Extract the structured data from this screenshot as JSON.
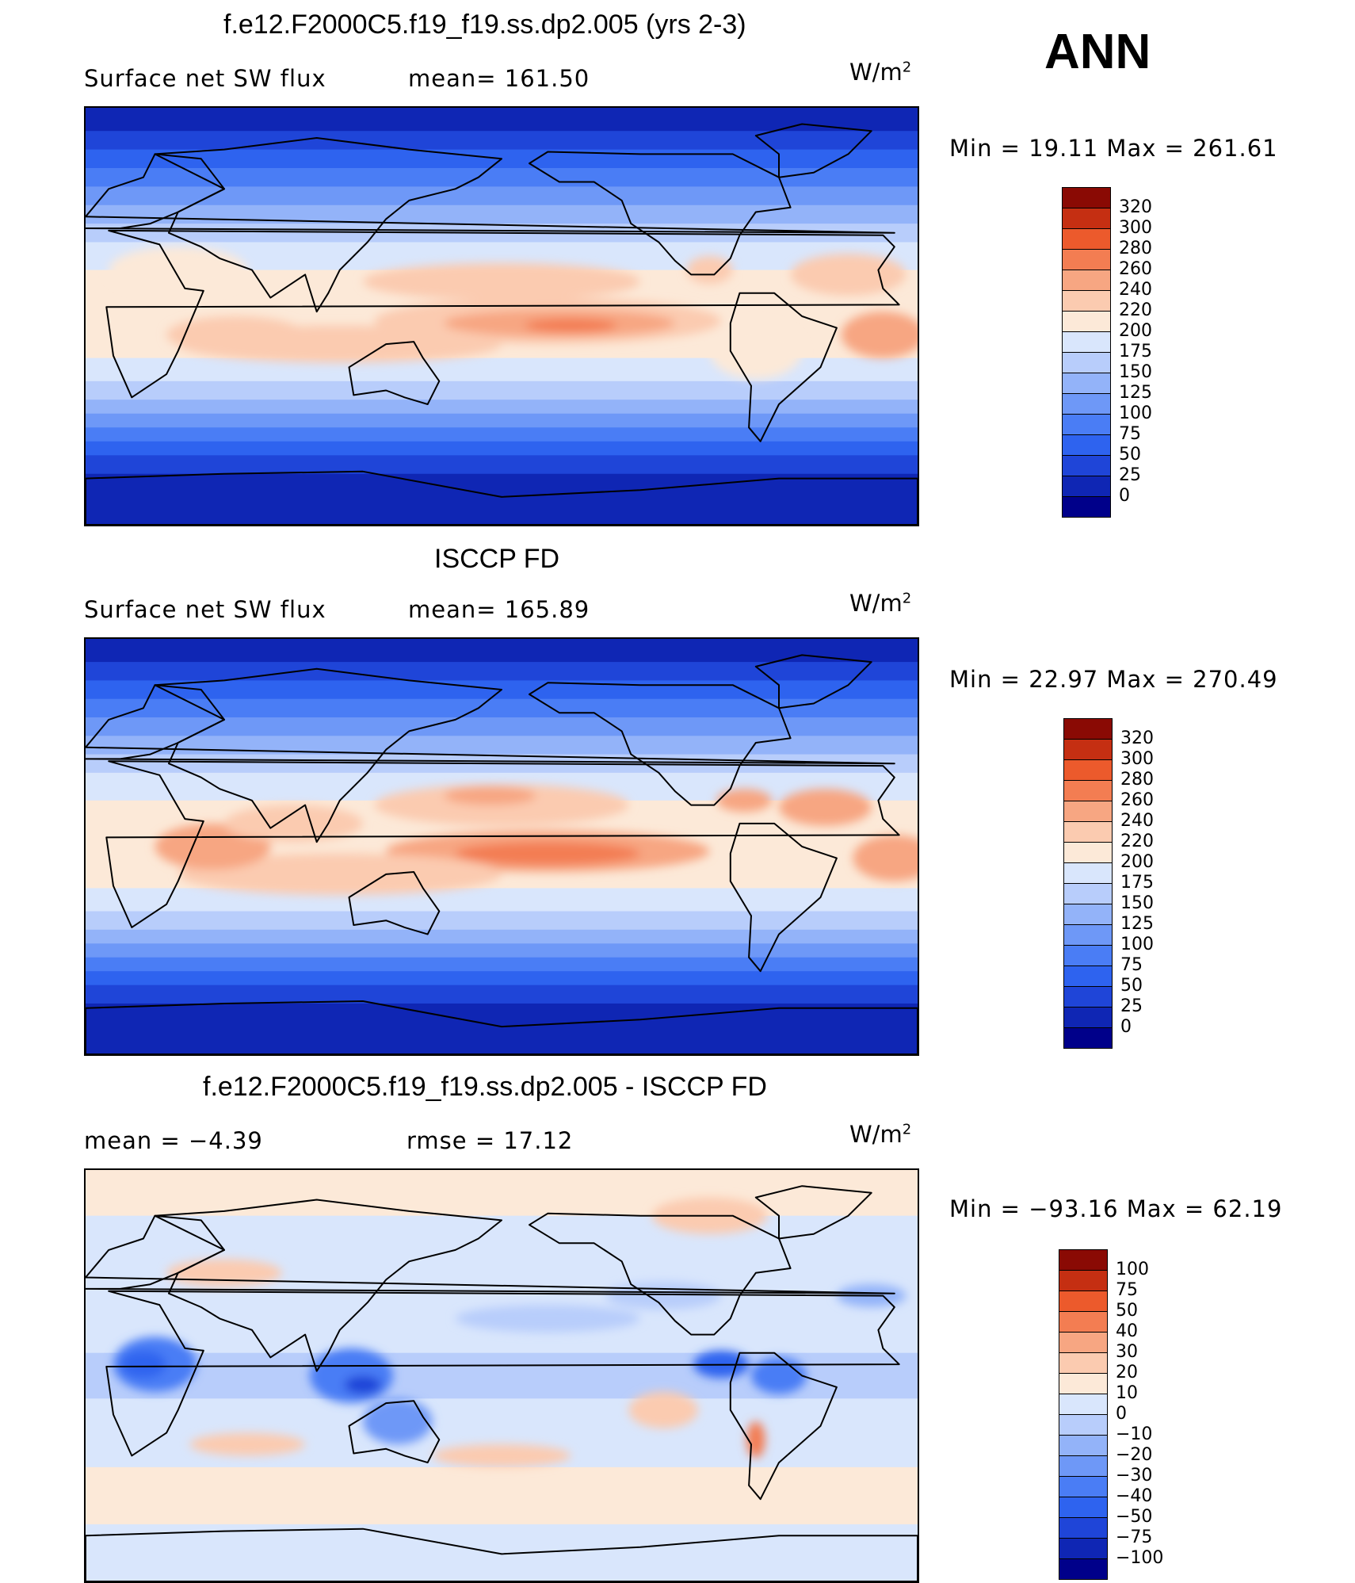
{
  "header": {
    "season": "ANN"
  },
  "panels": [
    {
      "title": "f.e12.F2000C5.f19_f19.ss.dp2.005 (yrs 2-3)",
      "left_label": "Surface net SW flux",
      "mid_label": "mean=  161.50",
      "units_base": "W/m",
      "units_exp": "2",
      "minmax": "Min =    19.11  Max  =  261.61"
    },
    {
      "title": "ISCCP FD",
      "left_label": "Surface net SW flux",
      "mid_label": "mean=  165.89",
      "units_base": "W/m",
      "units_exp": "2",
      "minmax": "Min =    22.97  Max  =  270.49"
    },
    {
      "title": "f.e12.F2000C5.f19_f19.ss.dp2.005 - ISCCP FD",
      "left_label": "mean =    −4.39",
      "mid_label": "rmse =    17.12",
      "units_base": "W/m",
      "units_exp": "2",
      "minmax": "Min  = −93.16  Max  =    62.19"
    }
  ],
  "chart_data": [
    {
      "type": "heatmap",
      "title": "f.e12.F2000C5.f19_f19.ss.dp2.005 (yrs 2-3)",
      "variable": "Surface net SW flux",
      "units": "W/m2",
      "mean": 161.5,
      "min": 19.11,
      "max": 261.61,
      "colorbar_levels": [
        "0",
        "25",
        "50",
        "75",
        "100",
        "125",
        "150",
        "175",
        "200",
        "220",
        "240",
        "260",
        "280",
        "300",
        "320"
      ],
      "colorbar_colors": [
        "#00008a",
        "#0f26b4",
        "#1f45d8",
        "#2e63ef",
        "#4a7df5",
        "#6e98f7",
        "#93b3f9",
        "#b8cdfb",
        "#d9e6fc",
        "#fce9d8",
        "#fbcbb0",
        "#f7a682",
        "#f37d52",
        "#ec5a2c",
        "#c52f12",
        "#8a0a04"
      ]
    },
    {
      "type": "heatmap",
      "title": "ISCCP FD",
      "variable": "Surface net SW flux",
      "units": "W/m2",
      "mean": 165.89,
      "min": 22.97,
      "max": 270.49,
      "colorbar_levels": [
        "0",
        "25",
        "50",
        "75",
        "100",
        "125",
        "150",
        "175",
        "200",
        "220",
        "240",
        "260",
        "280",
        "300",
        "320"
      ],
      "colorbar_colors": [
        "#00008a",
        "#0f26b4",
        "#1f45d8",
        "#2e63ef",
        "#4a7df5",
        "#6e98f7",
        "#93b3f9",
        "#b8cdfb",
        "#d9e6fc",
        "#fce9d8",
        "#fbcbb0",
        "#f7a682",
        "#f37d52",
        "#ec5a2c",
        "#c52f12",
        "#8a0a04"
      ]
    },
    {
      "type": "heatmap",
      "title": "f.e12.F2000C5.f19_f19.ss.dp2.005 - ISCCP FD",
      "units": "W/m2",
      "mean": -4.39,
      "rmse": 17.12,
      "min": -93.16,
      "max": 62.19,
      "colorbar_levels": [
        "−100",
        "−75",
        "−50",
        "−40",
        "−30",
        "−20",
        "−10",
        "0",
        "10",
        "20",
        "30",
        "40",
        "50",
        "75",
        "100"
      ],
      "colorbar_colors": [
        "#00008a",
        "#0f26b4",
        "#1f45d8",
        "#2e63ef",
        "#4a7df5",
        "#6e98f7",
        "#93b3f9",
        "#b8cdfb",
        "#d9e6fc",
        "#fce9d8",
        "#fbcbb0",
        "#f7a682",
        "#f37d52",
        "#ec5a2c",
        "#c52f12",
        "#8a0a04"
      ]
    }
  ]
}
